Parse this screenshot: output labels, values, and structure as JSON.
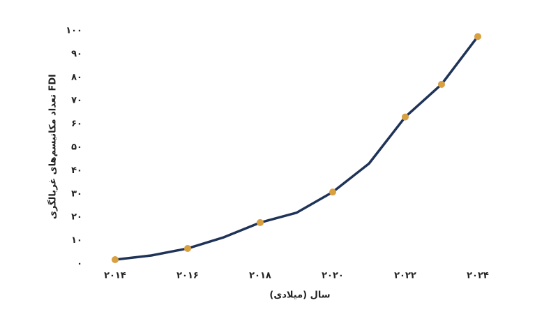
{
  "chart_data": {
    "type": "line",
    "x_label": "سال (میلادی)",
    "y_label": "تعداد مکانیسم‌های غربالگری FDI",
    "x": [
      2014,
      2015,
      2016,
      2017,
      2018,
      2019,
      2020,
      2021,
      2022,
      2023,
      2024
    ],
    "series": [
      {
        "name": "FDI",
        "color": "#1f3358",
        "marker_color": "#d9a040",
        "markers": [
          true,
          false,
          true,
          false,
          true,
          false,
          true,
          false,
          true,
          true,
          true
        ],
        "values": [
          1.8,
          3.6,
          6.6,
          11.4,
          17.7,
          21.9,
          30.8,
          43,
          63,
          77,
          97.5
        ]
      }
    ],
    "xlim": [
      2014,
      2024
    ],
    "xticks": [
      {
        "value": 2014,
        "label": "۲۰۱۴"
      },
      {
        "value": 2016,
        "label": "۲۰۱۶"
      },
      {
        "value": 2018,
        "label": "۲۰۱۸"
      },
      {
        "value": 2020,
        "label": "۲۰۲۰"
      },
      {
        "value": 2022,
        "label": "۲۰۲۲"
      },
      {
        "value": 2024,
        "label": "۲۰۲۴"
      }
    ],
    "ylim": [
      0,
      100
    ],
    "yticks": [
      {
        "value": 0,
        "label": "۰"
      },
      {
        "value": 10,
        "label": "۱۰"
      },
      {
        "value": 20,
        "label": "۲۰"
      },
      {
        "value": 30,
        "label": "۳۰"
      },
      {
        "value": 40,
        "label": "۴۰"
      },
      {
        "value": 50,
        "label": "۵۰"
      },
      {
        "value": 60,
        "label": "۶۰"
      },
      {
        "value": 70,
        "label": "۷۰"
      },
      {
        "value": 80,
        "label": "۸۰"
      },
      {
        "value": 90,
        "label": "۹۰"
      },
      {
        "value": 100,
        "label": "۱۰۰"
      }
    ],
    "grid": false
  }
}
